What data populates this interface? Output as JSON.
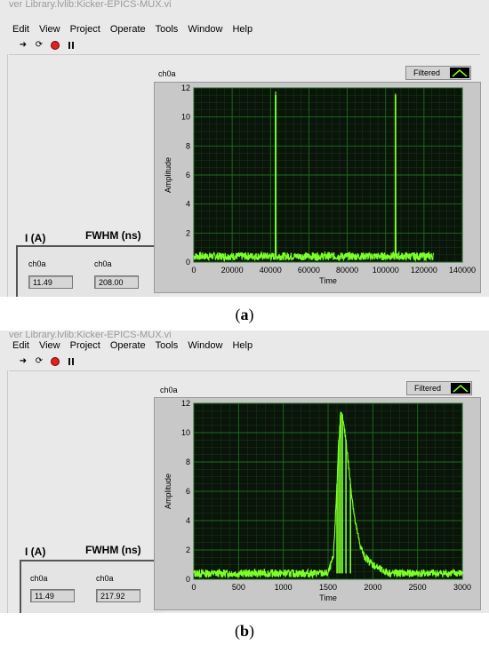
{
  "panels": [
    {
      "id": "a",
      "window_title": "ver Library.lvlib:Kicker-EPICS-MUX.vi",
      "menu": [
        "Edit",
        "View",
        "Project",
        "Operate",
        "Tools",
        "Window",
        "Help"
      ],
      "current_label": "I (A)",
      "fwhm_label": "FWHM (ns)",
      "current_channel": "ch0a",
      "current_value": "11.49",
      "fwhm_channel": "ch0a",
      "fwhm_value": "208.00",
      "graph_title": "ch0a",
      "legend_label": "Filtered",
      "caption_open": "(",
      "caption_letter": "a",
      "caption_close": ")"
    },
    {
      "id": "b",
      "window_title": "ver Library.lvlib:Kicker-EPICS-MUX.vi",
      "menu": [
        "Edit",
        "View",
        "Project",
        "Operate",
        "Tools",
        "Window",
        "Help"
      ],
      "current_label": "I (A)",
      "fwhm_label": "FWHM (ns)",
      "current_channel": "ch0a",
      "current_value": "11.49",
      "fwhm_channel": "ch0a",
      "fwhm_value": "217.92",
      "graph_title": "ch0a",
      "legend_label": "Filtered",
      "caption_open": "(",
      "caption_letter": "b",
      "caption_close": ")"
    }
  ],
  "icons": [
    "run-arrow-icon",
    "run-continuous-icon",
    "abort-icon",
    "pause-icon"
  ],
  "colors": {
    "plot_bg": "#0a140a",
    "grid": "#1f6e1f",
    "trace": "#7cff29",
    "panel_bg": "#e9e9e9"
  },
  "chart_data": [
    {
      "type": "line",
      "xlabel": "Time",
      "ylabel": "Amplitude",
      "xlim": [
        0,
        140000
      ],
      "ylim": [
        0,
        12
      ],
      "xticks": [
        0,
        20000,
        40000,
        60000,
        80000,
        100000,
        120000,
        140000
      ],
      "yticks": [
        0,
        2,
        4,
        6,
        8,
        10,
        12
      ],
      "grid": true,
      "series": [
        {
          "x": [
            0,
            42500,
            42600,
            42700,
            42800,
            105000,
            105100,
            105200,
            105300,
            125000
          ],
          "y": [
            0.4,
            0.4,
            11.5,
            11.5,
            0.4,
            0.4,
            11.5,
            11.5,
            0.4,
            0.4
          ]
        }
      ]
    },
    {
      "type": "line",
      "xlabel": "Time",
      "ylabel": "Amplitude",
      "xlim": [
        0,
        3000
      ],
      "ylim": [
        0,
        12
      ],
      "xticks": [
        0,
        500,
        1000,
        1500,
        2000,
        2500,
        3000
      ],
      "yticks": [
        0,
        2,
        4,
        6,
        8,
        10,
        12
      ],
      "grid": true,
      "series": [
        {
          "x": [
            0,
            500,
            1000,
            1500,
            1560,
            1600,
            1620,
            1640,
            1660,
            1700,
            1750,
            1800,
            1850,
            1900,
            2000,
            2100,
            2200,
            2500,
            3000
          ],
          "y": [
            0.4,
            0.4,
            0.4,
            0.4,
            1.5,
            6.5,
            9.5,
            11.2,
            11.0,
            9.5,
            6.5,
            4.0,
            2.5,
            1.6,
            1.0,
            0.6,
            0.4,
            0.4,
            0.4
          ]
        }
      ]
    }
  ]
}
